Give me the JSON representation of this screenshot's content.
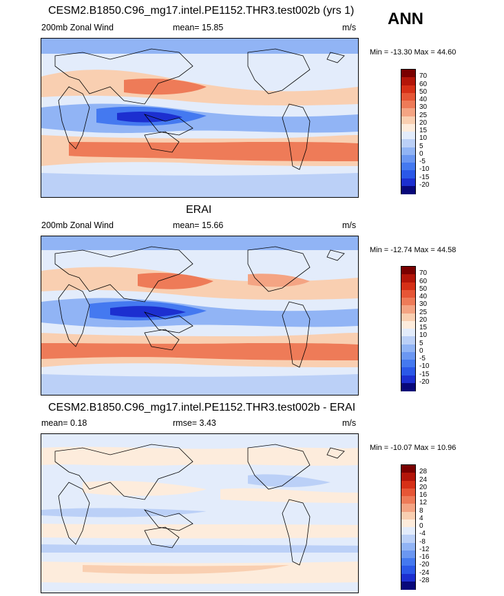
{
  "season": "ANN",
  "colors": {
    "abs_scale": [
      "#08087a",
      "#1c2fd0",
      "#2b58e8",
      "#4479f0",
      "#6b97f2",
      "#91b4f5",
      "#bbd0f7",
      "#e3ecfb",
      "#fdecdc",
      "#f9cfb1",
      "#f4a483",
      "#ee7b58",
      "#e65636",
      "#d63017",
      "#b31509",
      "#7a0000"
    ],
    "diff_scale": [
      "#08087a",
      "#1c2fd0",
      "#2b58e8",
      "#4479f0",
      "#6b97f2",
      "#91b4f5",
      "#bbd0f7",
      "#e3ecfb",
      "#fdecdc",
      "#f9cfb1",
      "#f4a483",
      "#ee7b58",
      "#e65636",
      "#d63017",
      "#b31509",
      "#7a0000"
    ]
  },
  "panels": [
    {
      "title": "CESM2.B1850.C96_mg17.intel.PE1152.THR3.test002b (yrs 1)",
      "left": "200mb Zonal Wind",
      "center": "mean=  15.85",
      "right": "m/s",
      "minmax": "Min = -13.30 Max =  44.60",
      "levels": [
        "70",
        "60",
        "50",
        "40",
        "30",
        "25",
        "20",
        "15",
        "10",
        "5",
        "0",
        "-5",
        "-10",
        "-15",
        "-20"
      ]
    },
    {
      "title": "ERAI",
      "left": "200mb Zonal Wind",
      "center": "mean=  15.66",
      "right": "m/s",
      "minmax": "Min = -12.74 Max =  44.58",
      "levels": [
        "70",
        "60",
        "50",
        "40",
        "30",
        "25",
        "20",
        "15",
        "10",
        "5",
        "0",
        "-5",
        "-10",
        "-15",
        "-20"
      ]
    },
    {
      "title": "CESM2.B1850.C96_mg17.intel.PE1152.THR3.test002b - ERAI",
      "left": "mean=   0.18",
      "center": "rmse=   3.43",
      "right": "m/s",
      "minmax": "Min = -10.07 Max =  10.96",
      "levels": [
        "28",
        "24",
        "20",
        "16",
        "12",
        "8",
        "4",
        "0",
        "-4",
        "-8",
        "-12",
        "-16",
        "-20",
        "-24",
        "-28"
      ]
    }
  ],
  "chart_data": [
    {
      "type": "heatmap",
      "title": "CESM2.B1850.C96_mg17.intel.PE1152.THR3.test002b (yrs 1)",
      "variable": "200mb Zonal Wind",
      "units": "m/s",
      "mean": 15.85,
      "min": -13.3,
      "max": 44.6,
      "levels": [
        -20,
        -15,
        -10,
        -5,
        0,
        5,
        10,
        15,
        20,
        25,
        30,
        40,
        50,
        60,
        70
      ]
    },
    {
      "type": "heatmap",
      "title": "ERAI",
      "variable": "200mb Zonal Wind",
      "units": "m/s",
      "mean": 15.66,
      "min": -12.74,
      "max": 44.58,
      "levels": [
        -20,
        -15,
        -10,
        -5,
        0,
        5,
        10,
        15,
        20,
        25,
        30,
        40,
        50,
        60,
        70
      ]
    },
    {
      "type": "heatmap",
      "title": "CESM2.B1850.C96_mg17.intel.PE1152.THR3.test002b - ERAI",
      "units": "m/s",
      "mean": 0.18,
      "rmse": 3.43,
      "min": -10.07,
      "max": 10.96,
      "levels": [
        -28,
        -24,
        -20,
        -16,
        -12,
        -8,
        -4,
        0,
        4,
        8,
        12,
        16,
        20,
        24,
        28
      ]
    }
  ]
}
